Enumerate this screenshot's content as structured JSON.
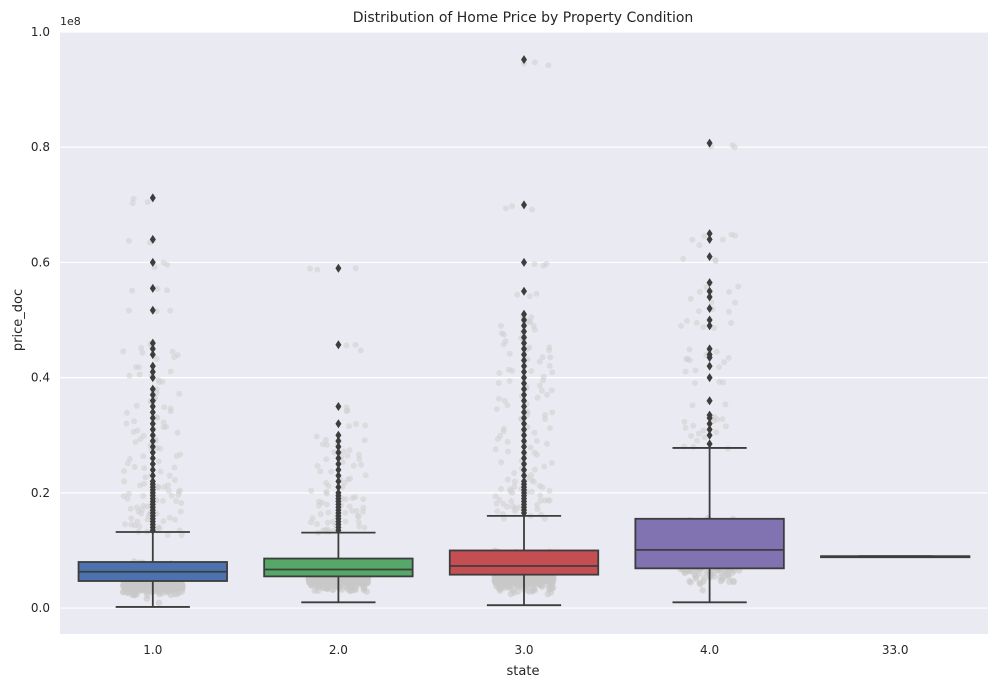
{
  "chart_data": {
    "type": "box",
    "title": "Distribution of Home Price by Property Condition",
    "xlabel": "state",
    "ylabel": "price_doc",
    "offset_label": "1e8",
    "categories": [
      "1.0",
      "2.0",
      "3.0",
      "4.0",
      "33.0"
    ],
    "ylim": [
      -0.045,
      1.0
    ],
    "yticks": [
      0.0,
      0.2,
      0.4,
      0.6,
      0.8,
      1.0
    ],
    "ytick_labels": [
      "0.0",
      "0.2",
      "0.4",
      "0.6",
      "0.8",
      "1.0"
    ],
    "grid": true,
    "strip_overlay": true,
    "series": [
      {
        "category": "1.0",
        "color": "#4c72b0",
        "whisker_low": 0.002,
        "q1": 0.047,
        "median": 0.063,
        "q3": 0.08,
        "whisker_high": 0.132,
        "outliers": [
          0.135,
          0.14,
          0.145,
          0.15,
          0.155,
          0.16,
          0.165,
          0.17,
          0.175,
          0.18,
          0.185,
          0.19,
          0.195,
          0.2,
          0.205,
          0.21,
          0.215,
          0.22,
          0.23,
          0.24,
          0.25,
          0.26,
          0.27,
          0.28,
          0.29,
          0.3,
          0.31,
          0.32,
          0.33,
          0.34,
          0.35,
          0.36,
          0.37,
          0.38,
          0.4,
          0.41,
          0.42,
          0.44,
          0.45,
          0.46,
          0.517,
          0.555,
          0.6,
          0.64,
          0.712
        ]
      },
      {
        "category": "2.0",
        "color": "#55a868",
        "whisker_low": 0.01,
        "q1": 0.055,
        "median": 0.067,
        "q3": 0.086,
        "whisker_high": 0.131,
        "outliers": [
          0.135,
          0.14,
          0.145,
          0.15,
          0.155,
          0.16,
          0.165,
          0.17,
          0.175,
          0.18,
          0.185,
          0.19,
          0.195,
          0.2,
          0.21,
          0.22,
          0.23,
          0.24,
          0.25,
          0.26,
          0.27,
          0.28,
          0.29,
          0.3,
          0.32,
          0.35,
          0.457,
          0.59
        ]
      },
      {
        "category": "3.0",
        "color": "#c44e52",
        "whisker_low": 0.005,
        "q1": 0.058,
        "median": 0.073,
        "q3": 0.1,
        "whisker_high": 0.16,
        "outliers": [
          0.165,
          0.17,
          0.175,
          0.18,
          0.185,
          0.19,
          0.195,
          0.2,
          0.205,
          0.21,
          0.215,
          0.22,
          0.23,
          0.24,
          0.25,
          0.26,
          0.27,
          0.28,
          0.29,
          0.3,
          0.31,
          0.32,
          0.33,
          0.34,
          0.35,
          0.36,
          0.37,
          0.38,
          0.39,
          0.4,
          0.41,
          0.42,
          0.43,
          0.44,
          0.45,
          0.46,
          0.47,
          0.48,
          0.49,
          0.5,
          0.51,
          0.55,
          0.6,
          0.7,
          0.952
        ]
      },
      {
        "category": "4.0",
        "color": "#8172b2",
        "whisker_low": 0.01,
        "q1": 0.069,
        "median": 0.101,
        "q3": 0.155,
        "whisker_high": 0.278,
        "outliers": [
          0.285,
          0.3,
          0.31,
          0.32,
          0.33,
          0.335,
          0.36,
          0.4,
          0.42,
          0.435,
          0.44,
          0.45,
          0.49,
          0.5,
          0.52,
          0.54,
          0.55,
          0.565,
          0.61,
          0.64,
          0.65,
          0.807
        ]
      },
      {
        "category": "33.0",
        "color": "#937860",
        "whisker_low": 0.09,
        "q1": 0.09,
        "median": 0.09,
        "q3": 0.09,
        "whisker_high": 0.09,
        "outliers": []
      }
    ]
  }
}
